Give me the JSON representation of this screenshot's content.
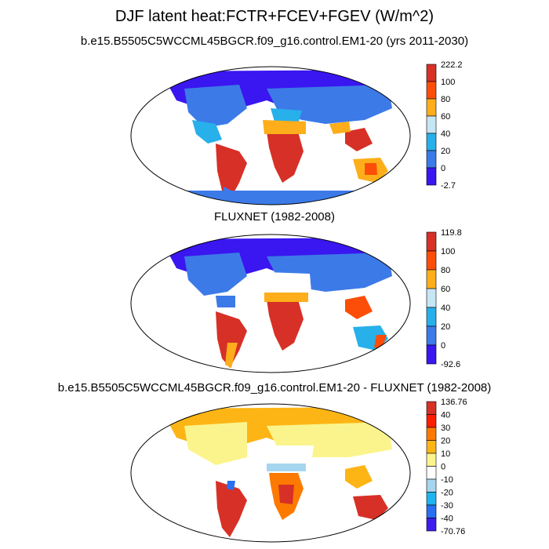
{
  "title": "DJF latent heat:FCTR+FCEV+FGEV (W/m^2)",
  "panels": [
    {
      "subtitle": "b.e15.B5505C5WCCML45BGCR.f09_g16.control.EM1-20 (yrs 2011-2030)",
      "colorbar": {
        "labels": [
          "222.2",
          "100",
          "80",
          "60",
          "40",
          "20",
          "0",
          "-2.7"
        ],
        "colors": [
          "#d73027",
          "#fc4e08",
          "#fdae1a",
          "#c6e5f5",
          "#27b0ea",
          "#3c7ae8",
          "#3a16f0"
        ]
      }
    },
    {
      "subtitle": "FLUXNET (1982-2008)",
      "colorbar": {
        "labels": [
          "119.8",
          "100",
          "80",
          "60",
          "40",
          "20",
          "0",
          "-92.6"
        ],
        "colors": [
          "#d73027",
          "#fc4e08",
          "#fdae1a",
          "#c6e5f5",
          "#27b0ea",
          "#3c7ae8",
          "#3a16f0"
        ]
      }
    },
    {
      "subtitle": "b.e15.B5505C5WCCML45BGCR.f09_g16.control.EM1-20 - FLUXNET (1982-2008)",
      "colorbar": {
        "labels": [
          "136.76",
          "40",
          "30",
          "20",
          "10",
          "0",
          "-10",
          "-20",
          "-30",
          "-40",
          "-70.76"
        ],
        "colors": [
          "#d73027",
          "#fd1e00",
          "#fd7a00",
          "#fdb515",
          "#fbf48c",
          "#ffffff",
          "#a6d5ef",
          "#1eb4f0",
          "#2a6ff0",
          "#3d1cf0"
        ]
      }
    }
  ]
}
